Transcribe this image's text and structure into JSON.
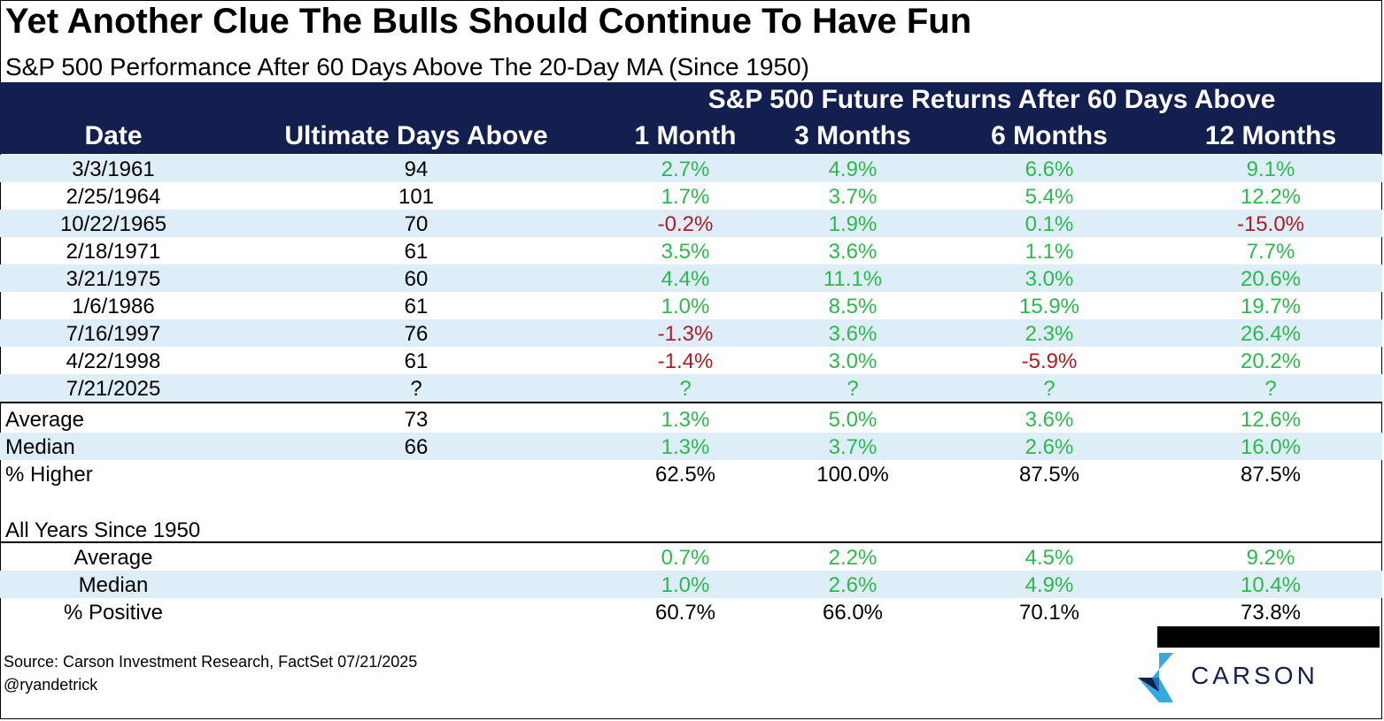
{
  "chart_data": {
    "type": "table",
    "title": "Yet Another Clue The Bulls Should Continue To Have Fun",
    "subtitle": "S&P 500 Performance After 60 Days Above The 20-Day MA (Since 1950)",
    "group_header": "S&P 500 Future Returns After 60 Days Above",
    "columns": [
      "Date",
      "Ultimate Days Above",
      "1 Month",
      "3 Months",
      "6 Months",
      "12 Months"
    ],
    "rows": [
      [
        "3/3/1961",
        "94",
        "2.7%",
        "4.9%",
        "6.6%",
        "9.1%"
      ],
      [
        "2/25/1964",
        "101",
        "1.7%",
        "3.7%",
        "5.4%",
        "12.2%"
      ],
      [
        "10/22/1965",
        "70",
        "-0.2%",
        "1.9%",
        "0.1%",
        "-15.0%"
      ],
      [
        "2/18/1971",
        "61",
        "3.5%",
        "3.6%",
        "1.1%",
        "7.7%"
      ],
      [
        "3/21/1975",
        "60",
        "4.4%",
        "11.1%",
        "3.0%",
        "20.6%"
      ],
      [
        "1/6/1986",
        "61",
        "1.0%",
        "8.5%",
        "15.9%",
        "19.7%"
      ],
      [
        "7/16/1997",
        "76",
        "-1.3%",
        "3.6%",
        "2.3%",
        "26.4%"
      ],
      [
        "4/22/1998",
        "61",
        "-1.4%",
        "3.0%",
        "-5.9%",
        "20.2%"
      ],
      [
        "7/21/2025",
        "?",
        "?",
        "?",
        "?",
        "?"
      ]
    ],
    "summary": [
      [
        "Average",
        "73",
        "1.3%",
        "5.0%",
        "3.6%",
        "12.6%"
      ],
      [
        "Median",
        "66",
        "1.3%",
        "3.7%",
        "2.6%",
        "16.0%"
      ],
      [
        "% Higher",
        "",
        "62.5%",
        "100.0%",
        "87.5%",
        "87.5%"
      ]
    ],
    "all_years_label": "All Years Since 1950",
    "all_years": [
      [
        "Average",
        "",
        "0.7%",
        "2.2%",
        "4.5%",
        "9.2%"
      ],
      [
        "Median",
        "",
        "1.0%",
        "2.6%",
        "4.9%",
        "10.4%"
      ],
      [
        "% Positive",
        "",
        "60.7%",
        "66.0%",
        "70.1%",
        "73.8%"
      ]
    ],
    "colors": {
      "positive": "#2db84d",
      "negative": "#b01a22",
      "neutral": "#000000",
      "header_bg": "#13204f",
      "row_shade": "#ddeef9"
    }
  },
  "footer": {
    "source": "Source: Carson Investment Research, FactSet 07/21/2025",
    "handle": "@ryandetrick"
  },
  "logo": {
    "text": "CARSON"
  }
}
